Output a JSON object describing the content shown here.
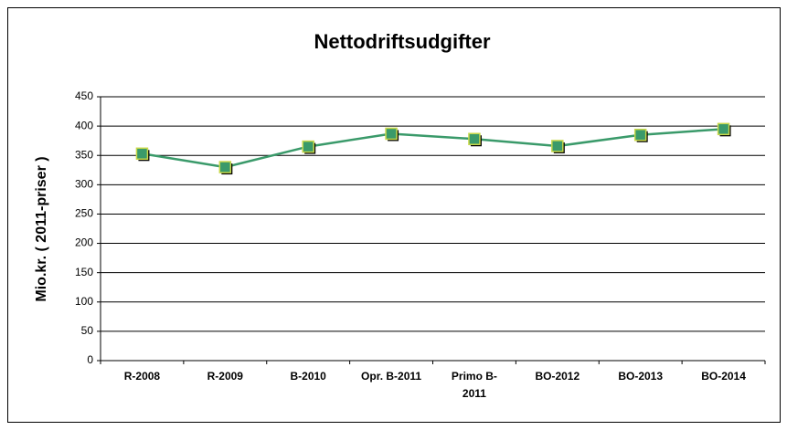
{
  "chart_data": {
    "type": "line",
    "title": "Nettodriftsudgifter",
    "y_label": "Mio.kr. ( 2011-priser )",
    "categories": [
      "R-2008",
      "R-2009",
      "B-2010",
      "Opr. B-2011",
      "Primo B-2011",
      "BO-2012",
      "BO-2013",
      "BO-2014"
    ],
    "series": [
      {
        "name": "Nettodriftsudgifter",
        "color": "#3a9a6a",
        "values": [
          353,
          330,
          365,
          387,
          378,
          366,
          385,
          395
        ]
      }
    ],
    "ylim": [
      0,
      450
    ],
    "yticks": [
      0,
      50,
      100,
      150,
      200,
      250,
      300,
      350,
      400,
      450
    ],
    "grid": true
  }
}
